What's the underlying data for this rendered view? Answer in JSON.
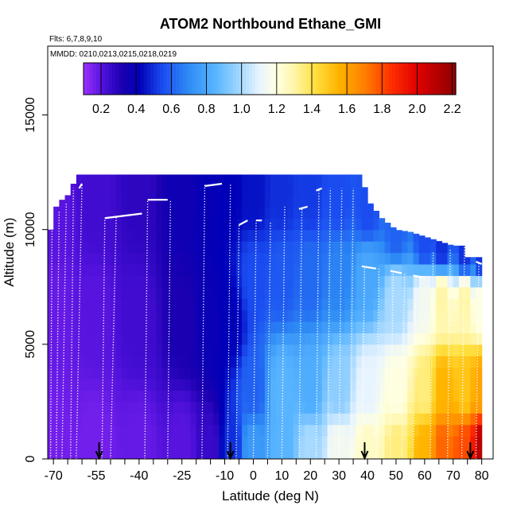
{
  "chart_data": {
    "type": "heatmap",
    "title": "ATOM2 Northbound Ethane_GMI",
    "flights_label": "Flts: 6,7,8,9,10",
    "dates_label": "MMDD: 0210,0213,0215,0218,0219",
    "xlabel": "Latitude (deg N)",
    "ylabel": "Altitude (m)",
    "xlim": [
      -72,
      84
    ],
    "ylim": [
      0,
      18000
    ],
    "x_ticks": [
      -70,
      -55,
      -40,
      -25,
      -10,
      0,
      10,
      20,
      30,
      40,
      50,
      60,
      70,
      80
    ],
    "x_minor_ticks": [
      -65,
      -60,
      -50,
      -45,
      -35,
      -30,
      -20,
      -15,
      -5,
      5,
      15,
      25,
      35,
      45,
      55,
      65,
      75
    ],
    "x_tick_labels": [
      "-70",
      "-55",
      "-40",
      "-25",
      "-10",
      "0",
      "10",
      "20",
      "30",
      "40",
      "50",
      "60",
      "70",
      "80"
    ],
    "y_ticks": [
      0,
      5000,
      10000,
      15000
    ],
    "y_tick_labels": [
      "0",
      "5000",
      "10000",
      "15000"
    ],
    "colorbar": {
      "ticks": [
        0.2,
        0.4,
        0.6,
        0.8,
        1.0,
        1.2,
        1.4,
        1.6,
        1.8,
        2.0,
        2.2
      ],
      "tick_labels": [
        "0.2",
        "0.4",
        "0.6",
        "0.8",
        "1.0",
        "1.2",
        "1.4",
        "1.6",
        "1.8",
        "2.0",
        "2.2"
      ],
      "range": [
        0.1,
        2.22
      ],
      "color_stops": [
        {
          "v": 0.1,
          "c": "#9b30ff"
        },
        {
          "v": 0.22,
          "c": "#4b0fd8"
        },
        {
          "v": 0.32,
          "c": "#1a00b0"
        },
        {
          "v": 0.42,
          "c": "#0000b8"
        },
        {
          "v": 0.55,
          "c": "#1a4cf0"
        },
        {
          "v": 0.7,
          "c": "#2e8cf5"
        },
        {
          "v": 0.85,
          "c": "#58b4ff"
        },
        {
          "v": 1.0,
          "c": "#a8daff"
        },
        {
          "v": 1.1,
          "c": "#e8f4ff"
        },
        {
          "v": 1.2,
          "c": "#ffffe0"
        },
        {
          "v": 1.3,
          "c": "#fff6a8"
        },
        {
          "v": 1.42,
          "c": "#ffe040"
        },
        {
          "v": 1.55,
          "c": "#ffb400"
        },
        {
          "v": 1.7,
          "c": "#ff8000"
        },
        {
          "v": 1.85,
          "c": "#ff3000"
        },
        {
          "v": 2.0,
          "c": "#e00000"
        },
        {
          "v": 2.22,
          "c": "#8b0000"
        }
      ]
    },
    "grid_lat_step": 2,
    "grid_alt_step": 500,
    "data_top_profile": [
      [
        -71,
        10000
      ],
      [
        -70,
        10800
      ],
      [
        -68,
        11200
      ],
      [
        -65,
        11500
      ],
      [
        -63,
        12000
      ],
      [
        -61,
        12400
      ],
      [
        -55,
        12400
      ],
      [
        -11,
        12400
      ],
      [
        -10,
        12900
      ],
      [
        -9,
        12400
      ],
      [
        25,
        12400
      ],
      [
        30,
        12400
      ],
      [
        38,
        12400
      ],
      [
        40,
        11300
      ],
      [
        45,
        10500
      ],
      [
        50,
        10000
      ],
      [
        55,
        9900
      ],
      [
        60,
        9700
      ],
      [
        65,
        9500
      ],
      [
        70,
        9300
      ],
      [
        73,
        9300
      ],
      [
        75,
        8800
      ],
      [
        80,
        8800
      ]
    ],
    "field_anchors_description": "estimated ethane values (ppbv) at lat/alt anchor points",
    "field_anchors": [
      {
        "lat": -70,
        "alt": 500,
        "v": 0.16
      },
      {
        "lat": -70,
        "alt": 6000,
        "v": 0.18
      },
      {
        "lat": -70,
        "alt": 11000,
        "v": 0.2
      },
      {
        "lat": -55,
        "alt": 500,
        "v": 0.16
      },
      {
        "lat": -55,
        "alt": 6000,
        "v": 0.2
      },
      {
        "lat": -55,
        "alt": 11500,
        "v": 0.24
      },
      {
        "lat": -40,
        "alt": 500,
        "v": 0.18
      },
      {
        "lat": -40,
        "alt": 6000,
        "v": 0.24
      },
      {
        "lat": -40,
        "alt": 11500,
        "v": 0.28
      },
      {
        "lat": -25,
        "alt": 500,
        "v": 0.2
      },
      {
        "lat": -25,
        "alt": 6000,
        "v": 0.32
      },
      {
        "lat": -25,
        "alt": 11500,
        "v": 0.36
      },
      {
        "lat": -15,
        "alt": 500,
        "v": 0.26
      },
      {
        "lat": -15,
        "alt": 6000,
        "v": 0.38
      },
      {
        "lat": -15,
        "alt": 11500,
        "v": 0.4
      },
      {
        "lat": -8,
        "alt": 500,
        "v": 0.5
      },
      {
        "lat": -8,
        "alt": 6000,
        "v": 0.42
      },
      {
        "lat": -8,
        "alt": 11500,
        "v": 0.42
      },
      {
        "lat": 0,
        "alt": 500,
        "v": 0.75
      },
      {
        "lat": 0,
        "alt": 3000,
        "v": 0.6
      },
      {
        "lat": 0,
        "alt": 8000,
        "v": 0.55
      },
      {
        "lat": 0,
        "alt": 11500,
        "v": 0.45
      },
      {
        "lat": 10,
        "alt": 500,
        "v": 0.85
      },
      {
        "lat": 10,
        "alt": 3000,
        "v": 0.85
      },
      {
        "lat": 10,
        "alt": 8000,
        "v": 0.58
      },
      {
        "lat": 10,
        "alt": 11500,
        "v": 0.5
      },
      {
        "lat": 20,
        "alt": 500,
        "v": 1.0
      },
      {
        "lat": 20,
        "alt": 3000,
        "v": 0.82
      },
      {
        "lat": 20,
        "alt": 8000,
        "v": 0.62
      },
      {
        "lat": 20,
        "alt": 11500,
        "v": 0.52
      },
      {
        "lat": 30,
        "alt": 500,
        "v": 1.15
      },
      {
        "lat": 30,
        "alt": 3000,
        "v": 0.95
      },
      {
        "lat": 30,
        "alt": 8000,
        "v": 0.68
      },
      {
        "lat": 30,
        "alt": 11500,
        "v": 0.55
      },
      {
        "lat": 40,
        "alt": 500,
        "v": 1.25
      },
      {
        "lat": 40,
        "alt": 3000,
        "v": 1.1
      },
      {
        "lat": 40,
        "alt": 8000,
        "v": 0.8
      },
      {
        "lat": 40,
        "alt": 11000,
        "v": 0.55
      },
      {
        "lat": 50,
        "alt": 500,
        "v": 1.35
      },
      {
        "lat": 50,
        "alt": 3000,
        "v": 1.2
      },
      {
        "lat": 50,
        "alt": 7000,
        "v": 1.0
      },
      {
        "lat": 50,
        "alt": 10000,
        "v": 0.6
      },
      {
        "lat": 60,
        "alt": 500,
        "v": 1.55
      },
      {
        "lat": 60,
        "alt": 3000,
        "v": 1.35
      },
      {
        "lat": 60,
        "alt": 7000,
        "v": 1.15
      },
      {
        "lat": 60,
        "alt": 9500,
        "v": 0.55
      },
      {
        "lat": 66,
        "alt": 500,
        "v": 1.75
      },
      {
        "lat": 66,
        "alt": 3000,
        "v": 1.55
      },
      {
        "lat": 66,
        "alt": 7000,
        "v": 1.3
      },
      {
        "lat": 66,
        "alt": 9300,
        "v": 0.5
      },
      {
        "lat": 74,
        "alt": 500,
        "v": 1.8
      },
      {
        "lat": 74,
        "alt": 3000,
        "v": 1.5
      },
      {
        "lat": 74,
        "alt": 7000,
        "v": 1.3
      },
      {
        "lat": 74,
        "alt": 9000,
        "v": 0.5
      },
      {
        "lat": 80,
        "alt": 500,
        "v": 2.1
      },
      {
        "lat": 80,
        "alt": 3000,
        "v": 1.6
      },
      {
        "lat": 80,
        "alt": 7000,
        "v": 1.2
      },
      {
        "lat": 80,
        "alt": 8700,
        "v": 0.5
      }
    ],
    "flight_profiles_description": "white dotted aircraft profile tracks: [lat_at_bottom, lat_at_top, top_altitude_m]",
    "flight_profiles": [
      [
        -71,
        -70.5,
        10000
      ],
      [
        -69,
        -68,
        10800
      ],
      [
        -67,
        -65.5,
        11200
      ],
      [
        -64,
        -63,
        11800
      ],
      [
        -62,
        -60,
        12000
      ],
      [
        -53,
        -52,
        10500
      ],
      [
        -50,
        -48,
        10600
      ],
      [
        -38,
        -37,
        11300
      ],
      [
        -30,
        -29,
        11300
      ],
      [
        -18,
        -17,
        12000
      ],
      [
        -9,
        -8,
        12000
      ],
      [
        -6,
        -5,
        10200
      ],
      [
        0,
        1,
        10400
      ],
      [
        5,
        6,
        10300
      ],
      [
        10,
        11,
        11000
      ],
      [
        16,
        17,
        10900
      ],
      [
        22,
        23,
        11800
      ],
      [
        26,
        27,
        11800
      ],
      [
        30,
        31,
        11800
      ],
      [
        34,
        35,
        11800
      ],
      [
        38,
        39,
        8400
      ],
      [
        43,
        44,
        8300
      ],
      [
        48,
        49,
        8200
      ],
      [
        52,
        53,
        8100
      ],
      [
        56,
        57,
        8000
      ],
      [
        62,
        63,
        9000
      ],
      [
        68,
        69,
        9200
      ],
      [
        73,
        74,
        9400
      ],
      [
        78,
        79,
        8600
      ]
    ],
    "flight_track_segments_description": "solid white near-top flight legs: [lat_start, lat_end, alt_start, alt_end]",
    "flight_track_segments": [
      [
        -61,
        -60,
        11800,
        12000
      ],
      [
        -52,
        -39,
        10500,
        10700
      ],
      [
        -37,
        -30,
        11300,
        11300
      ],
      [
        -17,
        -11,
        11900,
        12000
      ],
      [
        -5,
        -2,
        10200,
        10400
      ],
      [
        1,
        3,
        10400,
        10400
      ],
      [
        16,
        19,
        10900,
        11000
      ],
      [
        22,
        24,
        11700,
        11800
      ],
      [
        38,
        43,
        8400,
        8300
      ],
      [
        48,
        52,
        8200,
        8100
      ],
      [
        56,
        60,
        8000,
        7900
      ],
      [
        73,
        76,
        9500,
        9400
      ],
      [
        78,
        80,
        8600,
        8500
      ]
    ],
    "arrow_markers_lat": [
      -54,
      -8,
      39,
      76
    ]
  }
}
